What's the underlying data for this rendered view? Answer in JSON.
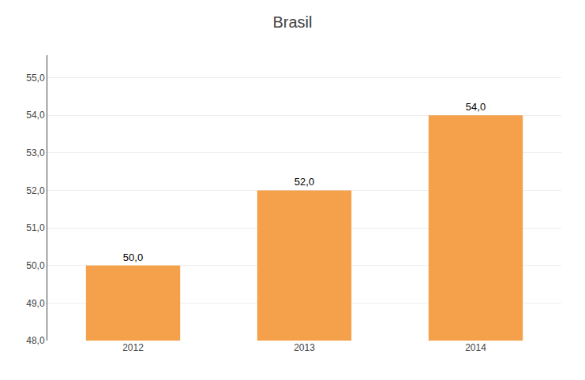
{
  "chart_data": {
    "type": "bar",
    "title": "Brasil",
    "categories": [
      "2012",
      "2013",
      "2014"
    ],
    "values": [
      50.0,
      52.0,
      54.0
    ],
    "value_labels": [
      "50,0",
      "52,0",
      "54,0"
    ],
    "data_labels": true,
    "color": "#F5A04A",
    "ylim": [
      48.0,
      55.6
    ],
    "yticks": [
      {
        "value": 48.0,
        "label": "48,0"
      },
      {
        "value": 49.0,
        "label": "49,0"
      },
      {
        "value": 50.0,
        "label": "50,0"
      },
      {
        "value": 51.0,
        "label": "51,0"
      },
      {
        "value": 52.0,
        "label": "52,0"
      },
      {
        "value": 53.0,
        "label": "53,0"
      },
      {
        "value": 54.0,
        "label": "54,0"
      },
      {
        "value": 55.0,
        "label": "55,0"
      }
    ],
    "grid": true
  }
}
